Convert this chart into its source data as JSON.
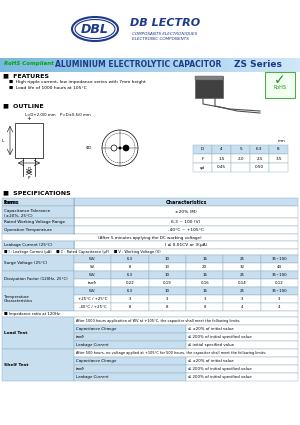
{
  "bg_color": "#ffffff",
  "blue_dark": "#1e3a8a",
  "blue_mid": "#2755a0",
  "banner_left_color": "#a8d4f0",
  "banner_right_color": "#d8eefa",
  "table_line_color": "#8aaabb",
  "label_bg": "#c8dff0",
  "row_alt_bg": "#ddeef8",
  "white": "#ffffff",
  "green_check": "#228B22",
  "outline_table_headers": [
    "D",
    "4",
    "5",
    "6.3",
    "8"
  ],
  "outline_table_f": [
    "F",
    "1.5",
    "2.0",
    "2.5",
    "3.5"
  ],
  "outline_table_phi": [
    "φd",
    "0.45",
    "",
    "0.50",
    ""
  ],
  "sv_header": [
    "WV.",
    "6.3",
    "10",
    "16",
    "25",
    "35~100"
  ],
  "sv_row1": [
    "SV.",
    "8",
    "13",
    "20",
    "32",
    "44"
  ],
  "df_header": [
    "WV.",
    "6.3",
    "10",
    "16",
    "25",
    "35~100"
  ],
  "df_row1": [
    "tanδ",
    "0.22",
    "0.19",
    "0.16",
    "0.14",
    "0.12"
  ],
  "tc_header": [
    "WV.",
    "6.3",
    "10",
    "16",
    "25",
    "35~100"
  ],
  "tc_row1": [
    "+25°C / +25°C",
    "3",
    "3",
    "3",
    "3",
    "3"
  ],
  "tc_row2": [
    "-40°C / +25°C",
    "8",
    "8",
    "8",
    "4",
    "4"
  ]
}
